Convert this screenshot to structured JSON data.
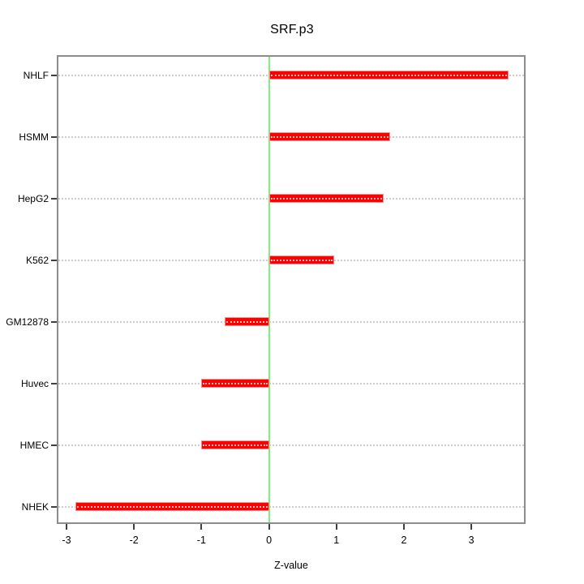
{
  "title": "SRF.p3",
  "x_axis_title": "Z-value",
  "chart_data": {
    "type": "bar",
    "orientation": "horizontal",
    "title": "SRF.p3",
    "xlabel": "Z-value",
    "ylabel": "",
    "categories": [
      "NHLF",
      "HSMM",
      "HepG2",
      "K562",
      "GM12878",
      "Huvec",
      "HMEC",
      "NHEK"
    ],
    "values": [
      3.55,
      1.8,
      1.7,
      0.97,
      -0.65,
      -1.0,
      -1.0,
      -2.87
    ],
    "x_ticks": [
      -3,
      -2,
      -1,
      0,
      1,
      2,
      3
    ],
    "xlim": [
      -3.12,
      3.78
    ],
    "zero_reference_line": 0,
    "grid": "dotted horizontal line per category",
    "legend": "none",
    "colors": {
      "bar_fill": "#ff0000",
      "bar_border": "#ff8f8f",
      "bar_center_dots": "#ffffff",
      "zero_line": "#7df07d",
      "gridline": "#cdcdcd",
      "frame": "#8c8c8c",
      "tick": "#404040",
      "text": "#000000",
      "background": "#ffffff"
    }
  }
}
